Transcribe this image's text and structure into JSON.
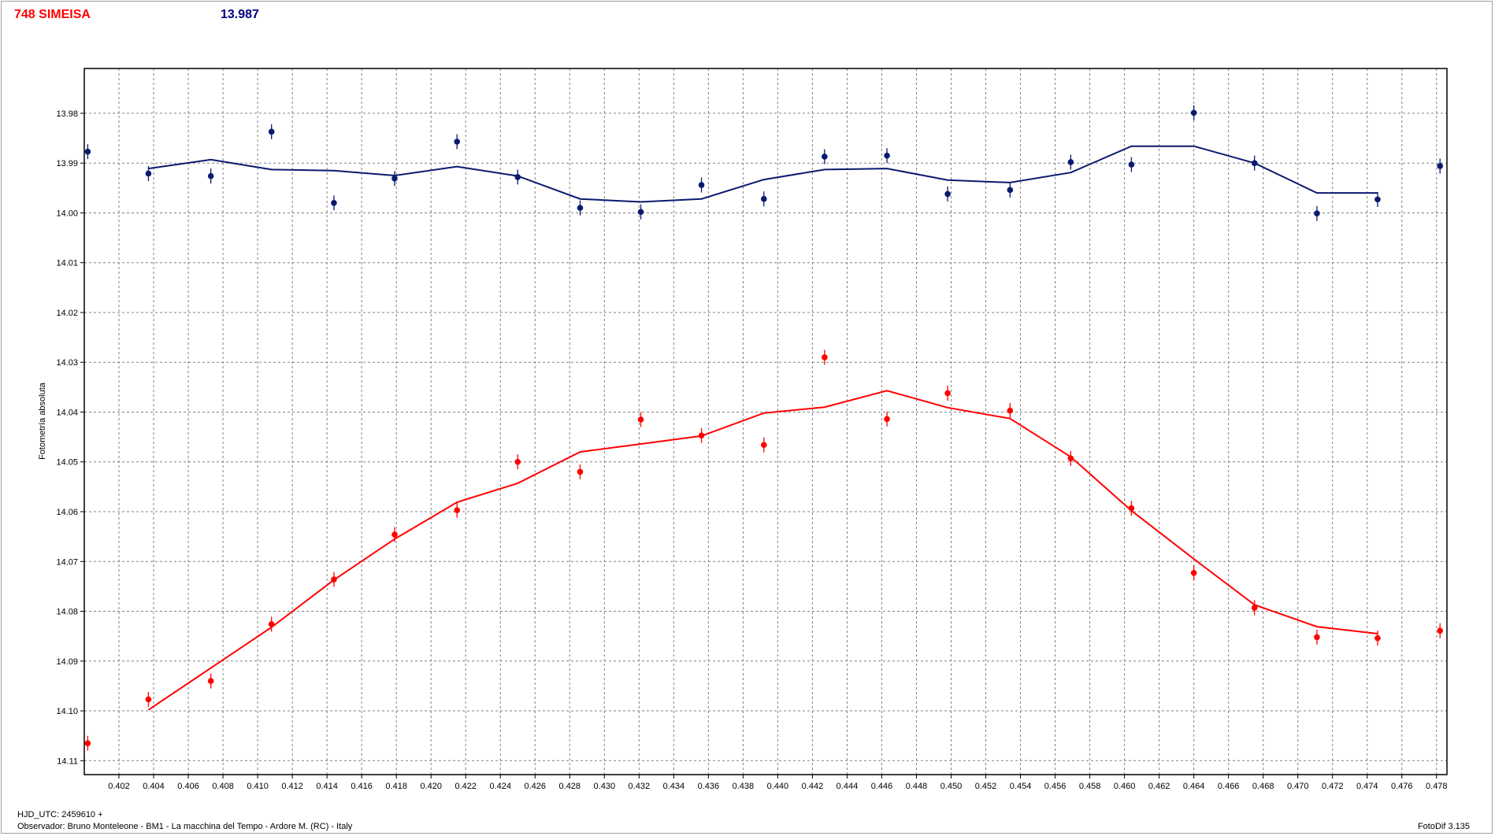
{
  "header": {
    "title": "748 SIMEISA",
    "reference_value": "13.987"
  },
  "footer": {
    "hjd": "HJD_UTC: 2459610 +",
    "observer": "Observador: Bruno Monteleone - BM1 - La macchina del Tempo - Ardore M. (RC) - Italy",
    "software": "FotoDif 3.135"
  },
  "colors": {
    "title": "#ff0000",
    "reference_value": "#000080",
    "series_blue": "#0a1a6e",
    "series_red": "#ff0000",
    "grid": "#808080",
    "axis": "#000000"
  },
  "chart_data": {
    "type": "scatter",
    "title": "748 SIMEISA",
    "xlabel": "",
    "ylabel": "Fotometría absoluta",
    "xlim": [
      0.4,
      0.4786
    ],
    "ylim": [
      13.971,
      14.1128
    ],
    "y_inverted": true,
    "grid": true,
    "x_ticks": [
      0.402,
      0.404,
      0.406,
      0.408,
      0.41,
      0.412,
      0.414,
      0.416,
      0.418,
      0.42,
      0.422,
      0.424,
      0.426,
      0.428,
      0.43,
      0.432,
      0.434,
      0.436,
      0.438,
      0.44,
      0.442,
      0.444,
      0.446,
      0.448,
      0.45,
      0.452,
      0.454,
      0.456,
      0.458,
      0.46,
      0.462,
      0.464,
      0.466,
      0.468,
      0.47,
      0.472,
      0.474,
      0.476,
      0.478
    ],
    "x_tick_labels": [
      "0.402",
      "0.404",
      "0.406",
      "0.408",
      "0.410",
      "0.412",
      "0.414",
      "0.416",
      "0.418",
      "0.420",
      "0.422",
      "0.424",
      "0.426",
      "0.428",
      "0.430",
      "0.432",
      "0.434",
      "0.436",
      "0.438",
      "0.440",
      "0.442",
      "0.444",
      "0.446",
      "0.448",
      "0.450",
      "0.452",
      "0.454",
      "0.456",
      "0.458",
      "0.460",
      "0.462",
      "0.464",
      "0.466",
      "0.468",
      "0.470",
      "0.472",
      "0.474",
      "0.476",
      "0.478"
    ],
    "y_ticks": [
      13.98,
      13.99,
      14.0,
      14.01,
      14.02,
      14.03,
      14.04,
      14.05,
      14.06,
      14.07,
      14.08,
      14.09,
      14.1,
      14.11
    ],
    "y_tick_labels": [
      "13.98",
      "13.99",
      "14.00",
      "14.01",
      "14.02",
      "14.03",
      "14.04",
      "14.05",
      "14.06",
      "14.07",
      "14.08",
      "14.09",
      "14.10",
      "14.11"
    ],
    "series": [
      {
        "color": "#0a1a6e",
        "points": [
          {
            "x": 0.4002,
            "y": 13.9877,
            "err": 0.003
          },
          {
            "x": 0.4037,
            "y": 13.9921,
            "err": 0.003
          },
          {
            "x": 0.4073,
            "y": 13.9926,
            "err": 0.003
          },
          {
            "x": 0.4108,
            "y": 13.9837,
            "err": 0.003
          },
          {
            "x": 0.4144,
            "y": 13.998,
            "err": 0.003
          },
          {
            "x": 0.4179,
            "y": 13.9931,
            "err": 0.003
          },
          {
            "x": 0.4215,
            "y": 13.9857,
            "err": 0.003
          },
          {
            "x": 0.425,
            "y": 13.9928,
            "err": 0.003
          },
          {
            "x": 0.4286,
            "y": 13.999,
            "err": 0.003
          },
          {
            "x": 0.4321,
            "y": 13.9998,
            "err": 0.003
          },
          {
            "x": 0.4356,
            "y": 13.9944,
            "err": 0.003
          },
          {
            "x": 0.4392,
            "y": 13.9972,
            "err": 0.003
          },
          {
            "x": 0.4427,
            "y": 13.9887,
            "err": 0.003
          },
          {
            "x": 0.4463,
            "y": 13.9885,
            "err": 0.003
          },
          {
            "x": 0.4498,
            "y": 13.9962,
            "err": 0.003
          },
          {
            "x": 0.4534,
            "y": 13.9954,
            "err": 0.003
          },
          {
            "x": 0.4569,
            "y": 13.9898,
            "err": 0.003
          },
          {
            "x": 0.4604,
            "y": 13.9903,
            "err": 0.003
          },
          {
            "x": 0.464,
            "y": 13.9799,
            "err": 0.003
          },
          {
            "x": 0.4675,
            "y": 13.99,
            "err": 0.003
          },
          {
            "x": 0.4711,
            "y": 14.0001,
            "err": 0.003
          },
          {
            "x": 0.4746,
            "y": 13.9973,
            "err": 0.003
          },
          {
            "x": 0.4782,
            "y": 13.9906,
            "err": 0.003
          }
        ],
        "fit": [
          {
            "x": 0.4037,
            "y": 13.9911
          },
          {
            "x": 0.4073,
            "y": 13.9893
          },
          {
            "x": 0.4108,
            "y": 13.9913
          },
          {
            "x": 0.4144,
            "y": 13.9915
          },
          {
            "x": 0.4179,
            "y": 13.9925
          },
          {
            "x": 0.4215,
            "y": 13.9907
          },
          {
            "x": 0.425,
            "y": 13.9926
          },
          {
            "x": 0.4286,
            "y": 13.9972
          },
          {
            "x": 0.4321,
            "y": 13.9978
          },
          {
            "x": 0.4356,
            "y": 13.9972
          },
          {
            "x": 0.4392,
            "y": 13.9933
          },
          {
            "x": 0.4427,
            "y": 13.9913
          },
          {
            "x": 0.4463,
            "y": 13.9911
          },
          {
            "x": 0.4498,
            "y": 13.9934
          },
          {
            "x": 0.4534,
            "y": 13.9939
          },
          {
            "x": 0.4569,
            "y": 13.9919
          },
          {
            "x": 0.4604,
            "y": 13.9866
          },
          {
            "x": 0.464,
            "y": 13.9866
          },
          {
            "x": 0.4675,
            "y": 13.99
          },
          {
            "x": 0.4711,
            "y": 13.996
          },
          {
            "x": 0.4746,
            "y": 13.996
          }
        ]
      },
      {
        "color": "#ff0000",
        "points": [
          {
            "x": 0.4002,
            "y": 14.1065,
            "err": 0.003
          },
          {
            "x": 0.4037,
            "y": 14.0977,
            "err": 0.003
          },
          {
            "x": 0.4073,
            "y": 14.094,
            "err": 0.003
          },
          {
            "x": 0.4108,
            "y": 14.0826,
            "err": 0.003
          },
          {
            "x": 0.4144,
            "y": 14.0736,
            "err": 0.003
          },
          {
            "x": 0.4179,
            "y": 14.0646,
            "err": 0.003
          },
          {
            "x": 0.4215,
            "y": 14.0597,
            "err": 0.003
          },
          {
            "x": 0.425,
            "y": 14.05,
            "err": 0.003
          },
          {
            "x": 0.4286,
            "y": 14.052,
            "err": 0.003
          },
          {
            "x": 0.4321,
            "y": 14.0415,
            "err": 0.003
          },
          {
            "x": 0.4356,
            "y": 14.0447,
            "err": 0.003
          },
          {
            "x": 0.4392,
            "y": 14.0466,
            "err": 0.003
          },
          {
            "x": 0.4427,
            "y": 14.029,
            "err": 0.003
          },
          {
            "x": 0.4463,
            "y": 14.0414,
            "err": 0.003
          },
          {
            "x": 0.4498,
            "y": 14.0362,
            "err": 0.003
          },
          {
            "x": 0.4534,
            "y": 14.0397,
            "err": 0.003
          },
          {
            "x": 0.4569,
            "y": 14.0493,
            "err": 0.003
          },
          {
            "x": 0.4604,
            "y": 14.0593,
            "err": 0.003
          },
          {
            "x": 0.464,
            "y": 14.0723,
            "err": 0.003
          },
          {
            "x": 0.4675,
            "y": 14.0793,
            "err": 0.003
          },
          {
            "x": 0.4711,
            "y": 14.0852,
            "err": 0.003
          },
          {
            "x": 0.4746,
            "y": 14.0854,
            "err": 0.003
          },
          {
            "x": 0.4782,
            "y": 14.0839,
            "err": 0.003
          }
        ],
        "fit": [
          {
            "x": 0.4037,
            "y": 14.0998
          },
          {
            "x": 0.4073,
            "y": 14.0914
          },
          {
            "x": 0.4108,
            "y": 14.0832
          },
          {
            "x": 0.4144,
            "y": 14.0737
          },
          {
            "x": 0.4179,
            "y": 14.0655
          },
          {
            "x": 0.4215,
            "y": 14.0581
          },
          {
            "x": 0.425,
            "y": 14.0543
          },
          {
            "x": 0.4286,
            "y": 14.048
          },
          {
            "x": 0.4321,
            "y": 14.0464
          },
          {
            "x": 0.4356,
            "y": 14.0448
          },
          {
            "x": 0.4392,
            "y": 14.0402
          },
          {
            "x": 0.4427,
            "y": 14.039
          },
          {
            "x": 0.4463,
            "y": 14.0357
          },
          {
            "x": 0.4498,
            "y": 14.0391
          },
          {
            "x": 0.4534,
            "y": 14.0413
          },
          {
            "x": 0.4569,
            "y": 14.049
          },
          {
            "x": 0.4604,
            "y": 14.0598
          },
          {
            "x": 0.464,
            "y": 14.0695
          },
          {
            "x": 0.4675,
            "y": 14.0787
          },
          {
            "x": 0.4711,
            "y": 14.0831
          },
          {
            "x": 0.4746,
            "y": 14.0845
          }
        ]
      }
    ]
  }
}
